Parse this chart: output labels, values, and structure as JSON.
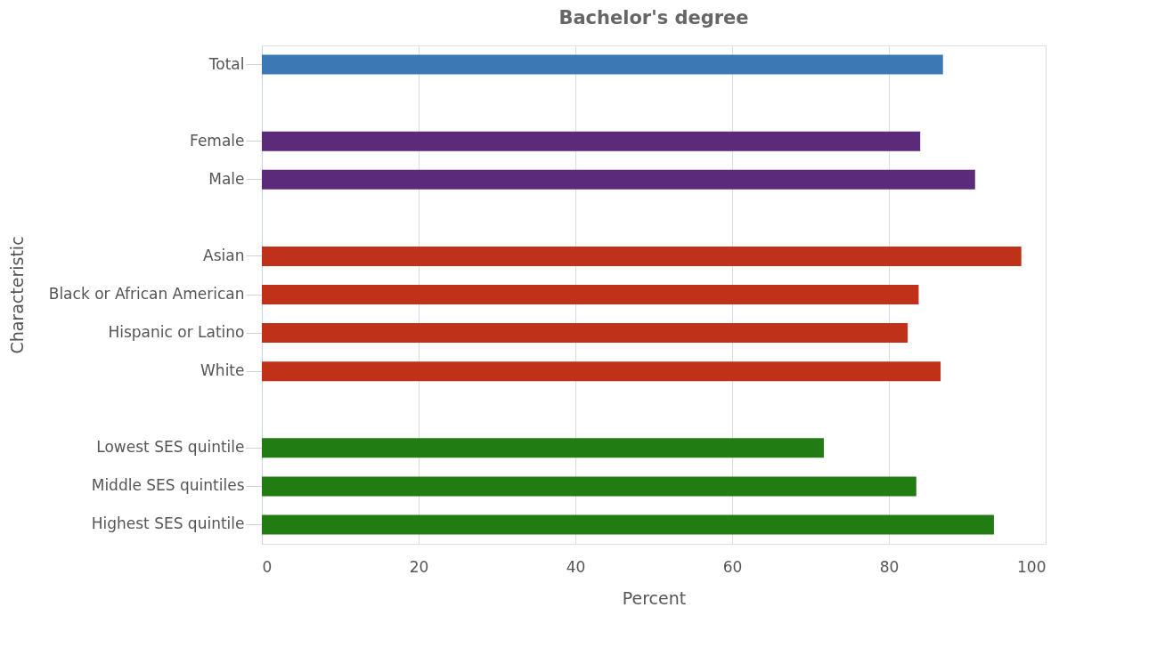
{
  "chart_data": {
    "type": "bar",
    "orientation": "horizontal",
    "title": "Bachelor's degree",
    "xlabel": "Percent",
    "ylabel": "Characteristic",
    "categories": [
      "Total",
      null,
      "Female",
      "Male",
      null,
      "Asian",
      "Black or African American",
      "Hispanic or Latino",
      "White",
      null,
      "Lowest SES quintile",
      "Middle SES quintiles",
      "Highest SES quintile"
    ],
    "values": [
      86.9,
      null,
      84.0,
      91.0,
      null,
      96.9,
      83.8,
      82.4,
      86.6,
      null,
      71.7,
      83.5,
      93.4
    ],
    "colors": [
      "#3b78b4",
      null,
      "#5b2a7b",
      "#5b2a7b",
      null,
      "#c0311a",
      "#c0311a",
      "#c0311a",
      "#c0311a",
      null,
      "#217c13",
      "#217c13",
      "#217c13"
    ],
    "xlim": [
      0,
      100
    ],
    "xticks": [
      0,
      20,
      40,
      60,
      80,
      100
    ],
    "grid": "x",
    "legend": false
  }
}
